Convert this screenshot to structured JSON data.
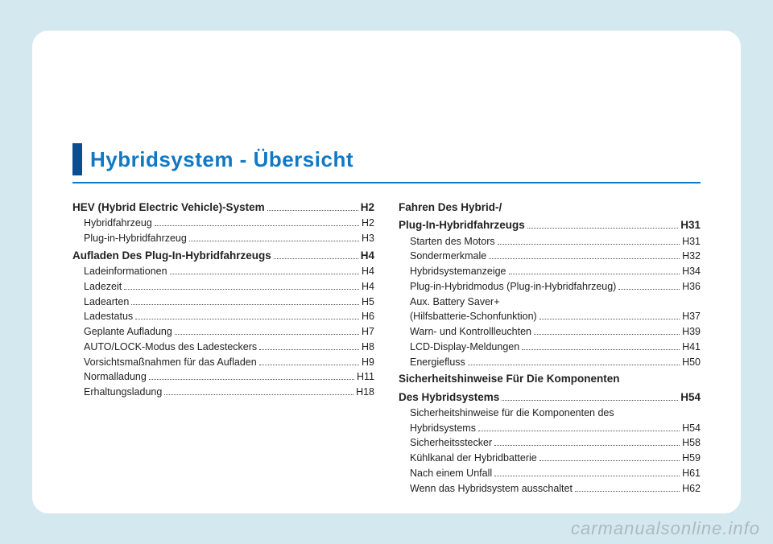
{
  "title": "Hybridsystem - Übersicht",
  "colors": {
    "page_bg": "#d4e8f0",
    "card_bg": "#ffffff",
    "accent": "#1178c4",
    "tab": "#0b4d8f",
    "text": "#222222",
    "dots": "#555555"
  },
  "left_column": [
    {
      "level": 0,
      "label": "HEV (Hybrid Electric Vehicle)-System",
      "page": "H2"
    },
    {
      "level": 1,
      "label": "Hybridfahrzeug",
      "page": "H2"
    },
    {
      "level": 1,
      "label": "Plug-in-Hybridfahrzeug",
      "page": "H3"
    },
    {
      "level": 0,
      "label": "Aufladen Des Plug-In-Hybridfahrzeugs",
      "page": "H4"
    },
    {
      "level": 1,
      "label": "Ladeinformationen",
      "page": "H4"
    },
    {
      "level": 1,
      "label": "Ladezeit",
      "page": "H4"
    },
    {
      "level": 1,
      "label": "Ladearten",
      "page": "H5"
    },
    {
      "level": 1,
      "label": "Ladestatus",
      "page": "H6"
    },
    {
      "level": 1,
      "label": "Geplante Aufladung",
      "page": "H7"
    },
    {
      "level": 1,
      "label": "AUTO/LOCK-Modus des Ladesteckers",
      "page": "H8"
    },
    {
      "level": 1,
      "label": "Vorsichtsmaßnahmen für das Aufladen",
      "page": "H9"
    },
    {
      "level": 1,
      "label": "Normalladung",
      "page": "H11"
    },
    {
      "level": 1,
      "label": "Erhaltungsladung",
      "page": "H18"
    }
  ],
  "right_column": [
    {
      "level": 0,
      "label": "Fahren Des Hybrid-/",
      "page": ""
    },
    {
      "level": 0,
      "label": "Plug-In-Hybridfahrzeugs",
      "page": "H31"
    },
    {
      "level": 1,
      "label": "Starten des Motors",
      "page": "H31"
    },
    {
      "level": 1,
      "label": "Sondermerkmale",
      "page": "H32"
    },
    {
      "level": 1,
      "label": "Hybridsystemanzeige",
      "page": "H34"
    },
    {
      "level": 1,
      "label": "Plug-in-Hybridmodus (Plug-in-Hybridfahrzeug)",
      "page": "H36"
    },
    {
      "level": 1,
      "label": "Aux. Battery Saver+",
      "page": ""
    },
    {
      "level": 1,
      "label": "(Hilfsbatterie-Schonfunktion)",
      "page": "H37"
    },
    {
      "level": 1,
      "label": "Warn- und Kontrollleuchten",
      "page": "H39"
    },
    {
      "level": 1,
      "label": "LCD-Display-Meldungen",
      "page": "H41"
    },
    {
      "level": 1,
      "label": "Energiefluss",
      "page": "H50"
    },
    {
      "level": 0,
      "label": "Sicherheitshinweise Für Die Komponenten",
      "page": ""
    },
    {
      "level": 0,
      "label": "Des Hybridsystems",
      "page": "H54"
    },
    {
      "level": 1,
      "label": "Sicherheitshinweise für die Komponenten des",
      "page": ""
    },
    {
      "level": 1,
      "label": "Hybridsystems",
      "page": "H54"
    },
    {
      "level": 1,
      "label": "Sicherheitsstecker",
      "page": "H58"
    },
    {
      "level": 1,
      "label": "Kühlkanal der Hybridbatterie",
      "page": "H59"
    },
    {
      "level": 1,
      "label": "Nach einem Unfall",
      "page": "H61"
    },
    {
      "level": 1,
      "label": "Wenn das Hybridsystem ausschaltet",
      "page": "H62"
    }
  ],
  "watermark": "carmanualsonline.info"
}
